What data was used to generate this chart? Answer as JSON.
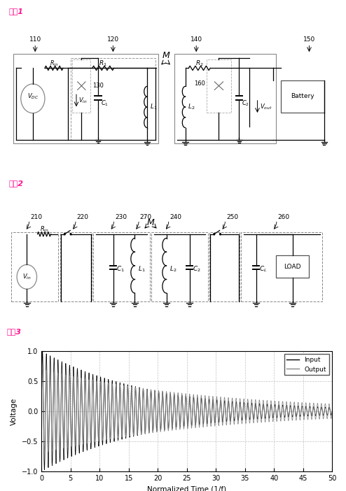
{
  "fig1_label": "도멳1",
  "fig2_label": "도멳2",
  "fig3_label": "도멳3",
  "label_color": "#FF1493",
  "background": "#FFFFFF",
  "graph_xticks": [
    0,
    5,
    10,
    15,
    20,
    25,
    30,
    35,
    40,
    45,
    50
  ],
  "graph_yticks": [
    -1,
    -0.5,
    0,
    0.5,
    1
  ],
  "graph_xlabel": "Normalized Time (1/f)",
  "graph_ylabel": "Voltage",
  "legend_input": "Input",
  "legend_output": "Output",
  "input_color": "#000000",
  "output_color": "#888888",
  "grid_color": "#BBBBBB",
  "grid_style": "--"
}
